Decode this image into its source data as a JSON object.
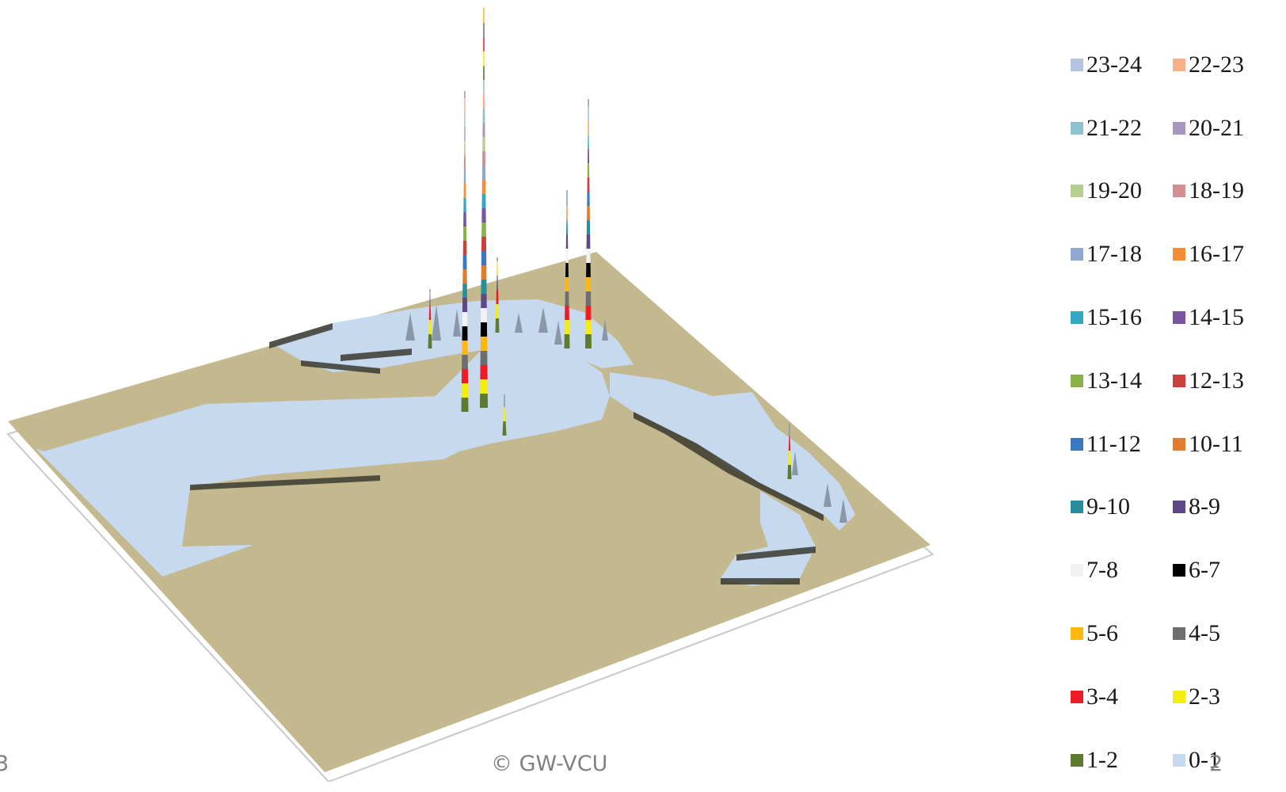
{
  "chart_data": {
    "type": "3d-surface",
    "legend": [
      {
        "label": "23-24",
        "color": "#b4c3e0"
      },
      {
        "label": "22-23",
        "color": "#f7b08a"
      },
      {
        "label": "21-22",
        "color": "#8fc2cf"
      },
      {
        "label": "20-21",
        "color": "#a996c0"
      },
      {
        "label": "19-20",
        "color": "#b4cf93"
      },
      {
        "label": "18-19",
        "color": "#d38e8f"
      },
      {
        "label": "17-18",
        "color": "#8ea8cf"
      },
      {
        "label": "16-17",
        "color": "#f58d35"
      },
      {
        "label": "15-16",
        "color": "#33a7c2"
      },
      {
        "label": "14-15",
        "color": "#7954a3"
      },
      {
        "label": "13-14",
        "color": "#89b24a"
      },
      {
        "label": "12-13",
        "color": "#c9403d"
      },
      {
        "label": "11-12",
        "color": "#3c78c2"
      },
      {
        "label": "10-11",
        "color": "#e07c2e"
      },
      {
        "label": "9-10",
        "color": "#2a8e9a"
      },
      {
        "label": "8-9",
        "color": "#5f4888"
      },
      {
        "label": "7-8",
        "color": "#f2f2f2"
      },
      {
        "label": "6-7",
        "color": "#000000"
      },
      {
        "label": "5-6",
        "color": "#ffb60f"
      },
      {
        "label": "4-5",
        "color": "#6e6e6e"
      },
      {
        "label": "3-4",
        "color": "#ee1c25"
      },
      {
        "label": "2-3",
        "color": "#f5ec0f"
      },
      {
        "label": "1-2",
        "color": "#5e7a2e"
      },
      {
        "label": "0-1",
        "color": "#c7d9ef"
      }
    ],
    "colors": {
      "land": "#c4b88e",
      "water": "#c7d9ef",
      "side_shadow": "#3b3a30"
    },
    "peaks": [
      {
        "id": "tall-1",
        "height_rank": 1
      },
      {
        "id": "tall-2",
        "height_rank": 2
      },
      {
        "id": "tall-3",
        "height_rank": 3
      },
      {
        "id": "tall-4",
        "height_rank": 4
      },
      {
        "id": "mid-1",
        "height_rank": 5
      },
      {
        "id": "mid-2",
        "height_rank": 6
      },
      {
        "id": "small-1",
        "height_rank": 7
      },
      {
        "id": "small-2",
        "height_rank": 8
      }
    ]
  },
  "footer": {
    "left": "3",
    "center": "© GW-VCU",
    "right": "2"
  }
}
